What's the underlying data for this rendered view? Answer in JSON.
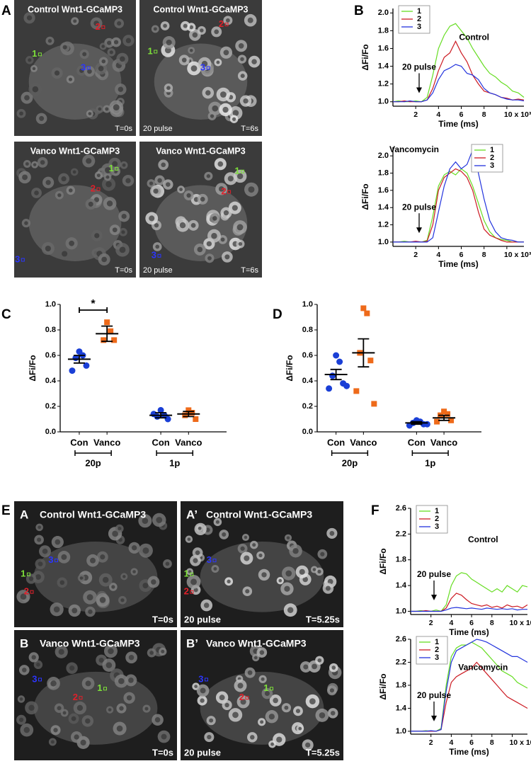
{
  "panel_letters": [
    "A",
    "B",
    "C",
    "D",
    "E",
    "F"
  ],
  "roi_colors": [
    "#7ee03a",
    "#e0202a",
    "#2b35ff"
  ],
  "images": [
    {
      "title": "Control Wnt1-GCaMP3",
      "time": "T=0s",
      "rois": [
        "1",
        "2",
        "3"
      ]
    },
    {
      "title": "Control Wnt1-GCaMP3",
      "stim": "20 pulse",
      "time": "T=6s",
      "rois": [
        "1",
        "2",
        "3"
      ]
    },
    {
      "title": "Vanco Wnt1-GCaMP3",
      "time": "T=0s",
      "rois": [
        "1",
        "2",
        "3"
      ]
    },
    {
      "title": "Vanco Wnt1-GCaMP3",
      "stim": "20 pulse",
      "time": "T=6s",
      "rois": [
        "1",
        "2",
        "3"
      ]
    },
    {
      "letter": "A",
      "title": "Control Wnt1-GCaMP3",
      "time": "T=0s",
      "rois": [
        "1",
        "2",
        "3"
      ]
    },
    {
      "letter": "A’",
      "title": "Control Wnt1-GCaMP3",
      "stim": "20 pulse",
      "time": "T=5.25s",
      "rois": [
        "1",
        "2",
        "3"
      ]
    },
    {
      "letter": "B",
      "title": "Vanco Wnt1-GCaMP3",
      "time": "T=0s",
      "rois": [
        "1",
        "2",
        "3"
      ]
    },
    {
      "letter": "B’",
      "title": "Vanco Wnt1-GCaMP3",
      "stim": "20 pulse",
      "time": "T=5.25s",
      "rois": [
        "1",
        "2",
        "3"
      ]
    }
  ],
  "chart_data": [
    {
      "type": "line",
      "title": "Control",
      "annotation": "20 pulse",
      "ylabel": "ΔFi/Fo",
      "xlabel": "Time (ms)",
      "legend": "upper left",
      "x": [
        0,
        500,
        1000,
        1500,
        2000,
        2500,
        3000,
        3500,
        4000,
        4500,
        5000,
        5500,
        6000,
        6500,
        7000,
        7500,
        8000,
        8500,
        9000,
        9500,
        10000,
        10500,
        11000,
        11500
      ],
      "xlim": [
        0,
        11500
      ],
      "xticks": [
        {
          "value": 2000,
          "label": "2"
        },
        {
          "value": 4000,
          "label": "4"
        },
        {
          "value": 6000,
          "label": "6"
        },
        {
          "value": 8000,
          "label": "8"
        },
        {
          "value": 10000,
          "label": "10 x 10³"
        }
      ],
      "ylim": [
        0.95,
        2.05
      ],
      "yticks": [
        {
          "value": 1,
          "label": "1.0"
        },
        1.2,
        1.4,
        1.6,
        1.8,
        {
          "value": 2,
          "label": "2.0"
        }
      ],
      "series": [
        {
          "name": "1",
          "color": "#66dd22",
          "values": [
            1.0,
            1.01,
            1.0,
            1.0,
            1.01,
            1.0,
            1.05,
            1.3,
            1.6,
            1.75,
            1.85,
            1.88,
            1.8,
            1.72,
            1.6,
            1.5,
            1.4,
            1.32,
            1.28,
            1.22,
            1.18,
            1.12,
            1.1,
            1.05
          ]
        },
        {
          "name": "2",
          "color": "#cc1a22",
          "values": [
            1.0,
            1.0,
            1.01,
            1.0,
            1.0,
            1.0,
            1.02,
            1.15,
            1.35,
            1.5,
            1.55,
            1.68,
            1.55,
            1.45,
            1.3,
            1.2,
            1.12,
            1.1,
            1.08,
            1.05,
            1.04,
            1.02,
            1.03,
            1.02
          ]
        },
        {
          "name": "3",
          "color": "#2233dd",
          "values": [
            1.0,
            1.0,
            1.0,
            1.01,
            1.0,
            1.0,
            1.02,
            1.1,
            1.25,
            1.35,
            1.38,
            1.42,
            1.4,
            1.32,
            1.3,
            1.25,
            1.15,
            1.1,
            1.08,
            1.05,
            1.03,
            1.02,
            1.02,
            1.01
          ]
        }
      ]
    },
    {
      "type": "line",
      "title": "Vancomycin",
      "annotation": "20 pulse",
      "ylabel": "ΔFi/Fo",
      "xlabel": "Time (ms)",
      "legend": "upper right",
      "x": [
        0,
        500,
        1000,
        1500,
        2000,
        2500,
        3000,
        3500,
        4000,
        4500,
        5000,
        5500,
        6000,
        6500,
        7000,
        7500,
        8000,
        8500,
        9000,
        9500,
        10000,
        10500,
        11000,
        11500
      ],
      "xlim": [
        0,
        11500
      ],
      "xticks": [
        {
          "value": 2000,
          "label": "2"
        },
        {
          "value": 4000,
          "label": "4"
        },
        {
          "value": 6000,
          "label": "6"
        },
        {
          "value": 8000,
          "label": "8"
        },
        {
          "value": 10000,
          "label": "10 x 10³"
        }
      ],
      "ylim": [
        0.95,
        2.1
      ],
      "yticks": [
        {
          "value": 1,
          "label": "1.0"
        },
        1.2,
        1.4,
        1.6,
        1.8,
        {
          "value": 2,
          "label": "2.0"
        }
      ],
      "series": [
        {
          "name": "1",
          "color": "#66dd22",
          "values": [
            1.0,
            1.0,
            1.01,
            1.0,
            1.0,
            1.0,
            1.02,
            1.3,
            1.65,
            1.78,
            1.82,
            1.78,
            1.85,
            1.8,
            1.65,
            1.45,
            1.25,
            1.12,
            1.05,
            1.03,
            1.02,
            1.0,
            1.0,
            1.0
          ]
        },
        {
          "name": "2",
          "color": "#cc1a22",
          "values": [
            1.0,
            1.0,
            1.0,
            1.0,
            1.01,
            1.0,
            1.01,
            1.2,
            1.6,
            1.75,
            1.8,
            1.85,
            1.82,
            1.75,
            1.6,
            1.35,
            1.15,
            1.08,
            1.05,
            1.02,
            1.0,
            1.0,
            1.0,
            1.0
          ]
        },
        {
          "name": "3",
          "color": "#2233dd",
          "values": [
            1.0,
            1.0,
            1.0,
            1.0,
            1.0,
            1.0,
            1.0,
            1.05,
            1.35,
            1.65,
            1.85,
            1.93,
            1.85,
            1.9,
            2.07,
            1.8,
            1.5,
            1.25,
            1.12,
            1.05,
            1.03,
            1.02,
            1.0,
            1.0
          ]
        }
      ]
    },
    {
      "type": "dotplot",
      "ylabel": "ΔFi/Fo",
      "significance": "*",
      "ylim": [
        0,
        1
      ],
      "yticks": [
        {
          "value": 0,
          "label": "0.0"
        },
        0.2,
        0.4,
        0.6,
        0.8,
        {
          "value": 1,
          "label": "1.0"
        }
      ],
      "groups": [
        {
          "label": "20p",
          "series": [
            {
              "name": "Con",
              "color": "#1a3fd6",
              "marker": "circle",
              "values": [
                0.63,
                0.6,
                0.58,
                0.52,
                0.48
              ],
              "mean": 0.57,
              "sem": 0.03
            },
            {
              "name": "Vanco",
              "color": "#ee6a1a",
              "marker": "square",
              "values": [
                0.86,
                0.79,
                0.72,
                0.72
              ],
              "mean": 0.77,
              "sem": 0.06
            }
          ]
        },
        {
          "label": "1p",
          "series": [
            {
              "name": "Con",
              "color": "#1a3fd6",
              "marker": "circle",
              "values": [
                0.17,
                0.13,
                0.12,
                0.1,
                0.14
              ],
              "mean": 0.13,
              "sem": 0.02
            },
            {
              "name": "Vanco",
              "color": "#ee6a1a",
              "marker": "square",
              "values": [
                0.17,
                0.15,
                0.13,
                0.1
              ],
              "mean": 0.14,
              "sem": 0.02
            }
          ]
        }
      ]
    },
    {
      "type": "dotplot",
      "ylabel": "ΔFi/Fo",
      "ylim": [
        0,
        1
      ],
      "yticks": [
        {
          "value": 0,
          "label": "0.0"
        },
        0.2,
        0.4,
        0.6,
        0.8,
        {
          "value": 1,
          "label": "1.0"
        }
      ],
      "groups": [
        {
          "label": "20p",
          "series": [
            {
              "name": "Con",
              "color": "#1a3fd6",
              "marker": "circle",
              "values": [
                0.6,
                0.55,
                0.44,
                0.38,
                0.34,
                0.36
              ],
              "mean": 0.45,
              "sem": 0.04
            },
            {
              "name": "Vanco",
              "color": "#ee6a1a",
              "marker": "square",
              "values": [
                0.97,
                0.93,
                0.62,
                0.56,
                0.32,
                0.22
              ],
              "mean": 0.62,
              "sem": 0.11
            }
          ]
        },
        {
          "label": "1p",
          "series": [
            {
              "name": "Con",
              "color": "#1a3fd6",
              "marker": "circle",
              "values": [
                0.09,
                0.08,
                0.07,
                0.06,
                0.05,
                0.06
              ],
              "mean": 0.07,
              "sem": 0.01
            },
            {
              "name": "Vanco",
              "color": "#ee6a1a",
              "marker": "square",
              "values": [
                0.16,
                0.14,
                0.13,
                0.09,
                0.08
              ],
              "mean": 0.11,
              "sem": 0.02
            }
          ]
        }
      ]
    },
    {
      "type": "line",
      "title": "Control",
      "annotation": "20 pulse",
      "ylabel": "ΔFi/Fo",
      "xlabel": "Time (ms)",
      "legend": "upper left",
      "x": [
        0,
        500,
        1000,
        1500,
        2000,
        2500,
        3000,
        3500,
        4000,
        4500,
        5000,
        5500,
        6000,
        6500,
        7000,
        7500,
        8000,
        8500,
        9000,
        9500,
        10000,
        10500,
        11000,
        11500
      ],
      "xlim": [
        0,
        11500
      ],
      "xticks": [
        {
          "value": 2000,
          "label": "2"
        },
        {
          "value": 4000,
          "label": "4"
        },
        {
          "value": 6000,
          "label": "6"
        },
        {
          "value": 8000,
          "label": "8"
        },
        {
          "value": 10000,
          "label": "10 x 10³"
        }
      ],
      "ylim": [
        0.95,
        2.6
      ],
      "yticks": [
        {
          "value": 1,
          "label": "1.0"
        },
        1.4,
        1.8,
        2.2,
        2.6
      ],
      "series": [
        {
          "name": "1",
          "color": "#66dd22",
          "values": [
            1.0,
            1.0,
            1.01,
            1.0,
            1.0,
            1.02,
            1.0,
            1.1,
            1.4,
            1.55,
            1.6,
            1.58,
            1.5,
            1.45,
            1.4,
            1.35,
            1.3,
            1.35,
            1.3,
            1.4,
            1.35,
            1.3,
            1.4,
            1.38
          ]
        },
        {
          "name": "2",
          "color": "#cc1a22",
          "values": [
            1.0,
            1.0,
            1.0,
            1.01,
            1.0,
            1.0,
            1.0,
            1.05,
            1.2,
            1.28,
            1.25,
            1.18,
            1.12,
            1.1,
            1.08,
            1.1,
            1.06,
            1.08,
            1.05,
            1.1,
            1.07,
            1.08,
            1.05,
            1.1
          ]
        },
        {
          "name": "3",
          "color": "#2233dd",
          "values": [
            1.0,
            1.0,
            1.0,
            1.0,
            1.0,
            1.0,
            1.0,
            1.02,
            1.05,
            1.06,
            1.05,
            1.04,
            1.05,
            1.04,
            1.03,
            1.05,
            1.04,
            1.03,
            1.04,
            1.03,
            1.04,
            1.02,
            1.03,
            1.03
          ]
        }
      ]
    },
    {
      "type": "line",
      "title": "Vancomycin",
      "annotation": "20 pulse",
      "ylabel": "ΔFi/Fo",
      "xlabel": "Time (ms)",
      "legend": "upper left",
      "x": [
        0,
        500,
        1000,
        1500,
        2000,
        2500,
        3000,
        3500,
        4000,
        4500,
        5000,
        5500,
        6000,
        6500,
        7000,
        7500,
        8000,
        8500,
        9000,
        9500,
        10000,
        10500,
        11000,
        11500
      ],
      "xlim": [
        0,
        11500
      ],
      "xticks": [
        {
          "value": 2000,
          "label": "2"
        },
        {
          "value": 4000,
          "label": "4"
        },
        {
          "value": 6000,
          "label": "6"
        },
        {
          "value": 8000,
          "label": "8"
        },
        {
          "value": 10000,
          "label": "10 x 10³"
        }
      ],
      "ylim": [
        0.95,
        2.6
      ],
      "yticks": [
        {
          "value": 1,
          "label": "1.0"
        },
        1.4,
        1.8,
        2.2,
        2.6
      ],
      "series": [
        {
          "name": "1",
          "color": "#66dd22",
          "values": [
            1.0,
            1.0,
            1.0,
            1.01,
            1.0,
            1.0,
            1.05,
            1.8,
            2.3,
            2.45,
            2.5,
            2.5,
            2.55,
            2.5,
            2.45,
            2.35,
            2.25,
            2.15,
            2.05,
            2.0,
            1.95,
            1.85,
            1.8,
            1.75
          ]
        },
        {
          "name": "2",
          "color": "#cc1a22",
          "values": [
            1.0,
            1.0,
            1.0,
            1.0,
            1.0,
            1.0,
            1.03,
            1.5,
            1.85,
            1.95,
            2.0,
            2.05,
            2.1,
            2.2,
            2.1,
            2.0,
            1.9,
            1.8,
            1.7,
            1.6,
            1.55,
            1.5,
            1.45,
            1.4
          ]
        },
        {
          "name": "3",
          "color": "#2233dd",
          "values": [
            1.0,
            1.0,
            1.0,
            1.0,
            1.01,
            1.0,
            1.03,
            1.7,
            2.2,
            2.4,
            2.45,
            2.5,
            2.55,
            2.6,
            2.58,
            2.55,
            2.5,
            2.45,
            2.4,
            2.35,
            2.3,
            2.3,
            2.25,
            2.2
          ]
        }
      ]
    }
  ]
}
